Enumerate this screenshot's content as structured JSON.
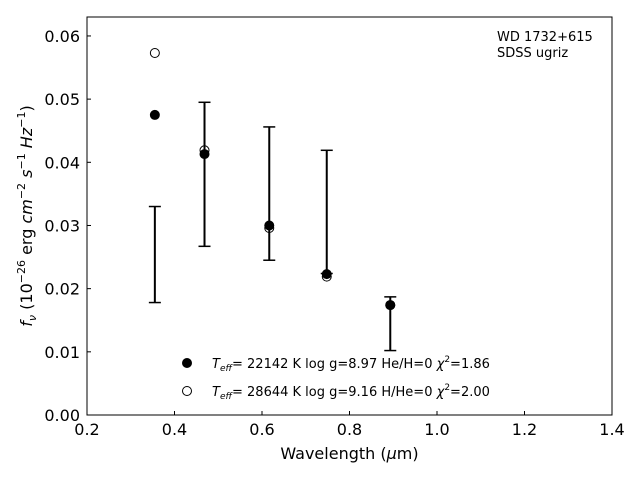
{
  "chart_data": {
    "type": "scatter",
    "xlabel": "Wavelength (μm)",
    "ylabel": "f_ν (10^-26 erg cm^-2 s^-1 Hz^-1)",
    "xlim": [
      0.2,
      1.4
    ],
    "ylim": [
      0.0,
      0.063
    ],
    "x_ticks": [
      "0.2",
      "0.4",
      "0.6",
      "0.8",
      "1.0",
      "1.2",
      "1.4"
    ],
    "y_ticks": [
      "0.00",
      "0.01",
      "0.02",
      "0.03",
      "0.04",
      "0.05",
      "0.06"
    ],
    "grid": false,
    "annotation": [
      "WD 1732+615",
      "SDSS ugriz"
    ],
    "observed": {
      "x": [
        0.3551,
        0.4686,
        0.6166,
        0.748,
        0.8932
      ],
      "ylow": [
        0.0178,
        0.0267,
        0.0245,
        0.0224,
        0.0102
      ],
      "yhigh": [
        0.033,
        0.0495,
        0.0456,
        0.0419,
        0.0187
      ]
    },
    "series": [
      {
        "name": "Teff= 22142 K  log g=8.97  He/H=0  χ2=1.86",
        "marker": "filled-circle",
        "x": [
          0.3551,
          0.4686,
          0.6166,
          0.748,
          0.8932
        ],
        "y": [
          0.0475,
          0.0413,
          0.03,
          0.0223,
          0.0174
        ]
      },
      {
        "name": "Teff= 28644 K  log g=9.16  H/He=0  χ2=2.00",
        "marker": "open-circle",
        "x": [
          0.3551,
          0.4686,
          0.6166,
          0.748,
          0.8932
        ],
        "y": [
          0.0573,
          0.0419,
          0.0296,
          0.0219,
          0.0174
        ]
      }
    ],
    "legend": [
      {
        "teff": "22142 K",
        "logg": "8.97",
        "comp": "He/H=0",
        "chi": "1.86"
      },
      {
        "teff": "28644 K",
        "logg": "9.16",
        "comp": "H/He=0",
        "chi": "2.00"
      }
    ],
    "legend_placement": "lower-center"
  }
}
